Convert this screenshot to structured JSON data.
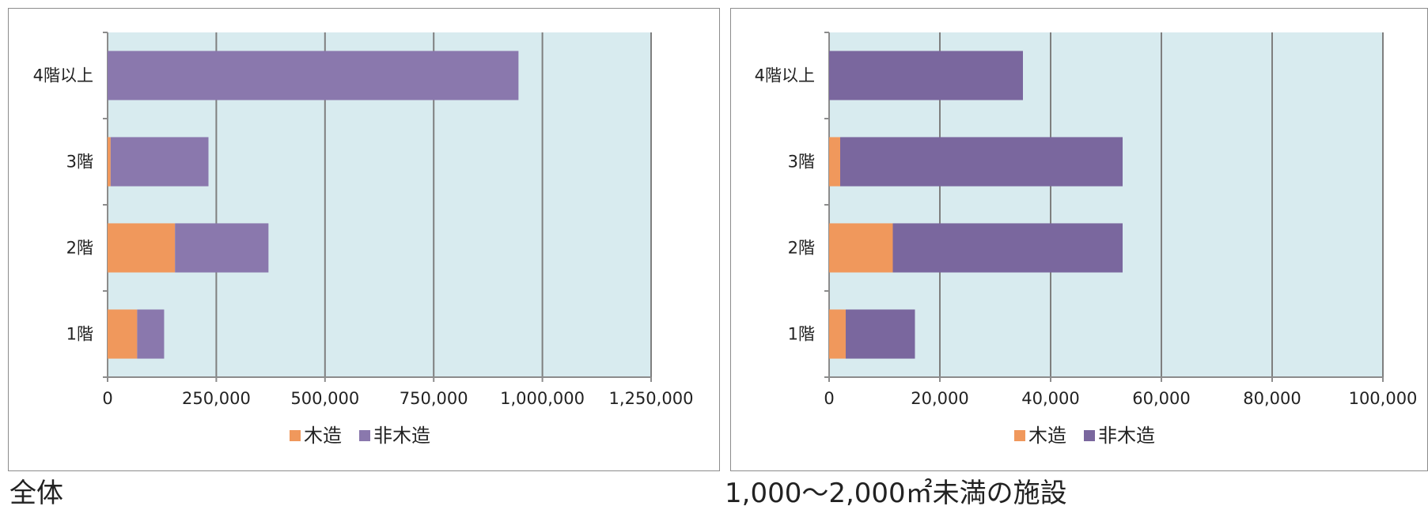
{
  "captions": {
    "left": "全体",
    "right": "1,000～2,000㎡未満の施設"
  },
  "colors": {
    "wood": "#f0985c",
    "nonwood": "#8a78ad",
    "nonwood_right": "#7a679e",
    "plot_bg": "#d8ebef",
    "grid": "#7f7f7f"
  },
  "chart_data": [
    {
      "type": "bar",
      "orientation": "horizontal",
      "stacked": true,
      "title": "",
      "categories": [
        "4階以上",
        "3階",
        "2階",
        "1階"
      ],
      "series": [
        {
          "name": "木造",
          "values": [
            0,
            7000,
            155000,
            68000
          ]
        },
        {
          "name": "非木造",
          "values": [
            945000,
            225000,
            215000,
            62000
          ]
        }
      ],
      "xlim": [
        0,
        1250000
      ],
      "xticks": [
        0,
        250000,
        500000,
        750000,
        1000000,
        1250000
      ],
      "xtick_labels": [
        "0",
        "250,000",
        "500,000",
        "750,000",
        "1,000,000",
        "1,250,000"
      ],
      "grid": "vertical",
      "legend": {
        "position": "bottom",
        "entries": [
          "木造",
          "非木造"
        ]
      }
    },
    {
      "type": "bar",
      "orientation": "horizontal",
      "stacked": true,
      "title": "",
      "categories": [
        "4階以上",
        "3階",
        "2階",
        "1階"
      ],
      "series": [
        {
          "name": "木造",
          "values": [
            0,
            2000,
            11500,
            3000
          ]
        },
        {
          "name": "非木造",
          "values": [
            35000,
            51000,
            41500,
            12500
          ]
        }
      ],
      "xlim": [
        0,
        100000
      ],
      "xticks": [
        0,
        20000,
        40000,
        60000,
        80000,
        100000
      ],
      "xtick_labels": [
        "0",
        "20,000",
        "40,000",
        "60,000",
        "80,000",
        "100,000"
      ],
      "grid": "vertical",
      "legend": {
        "position": "bottom",
        "entries": [
          "木造",
          "非木造"
        ]
      }
    }
  ]
}
